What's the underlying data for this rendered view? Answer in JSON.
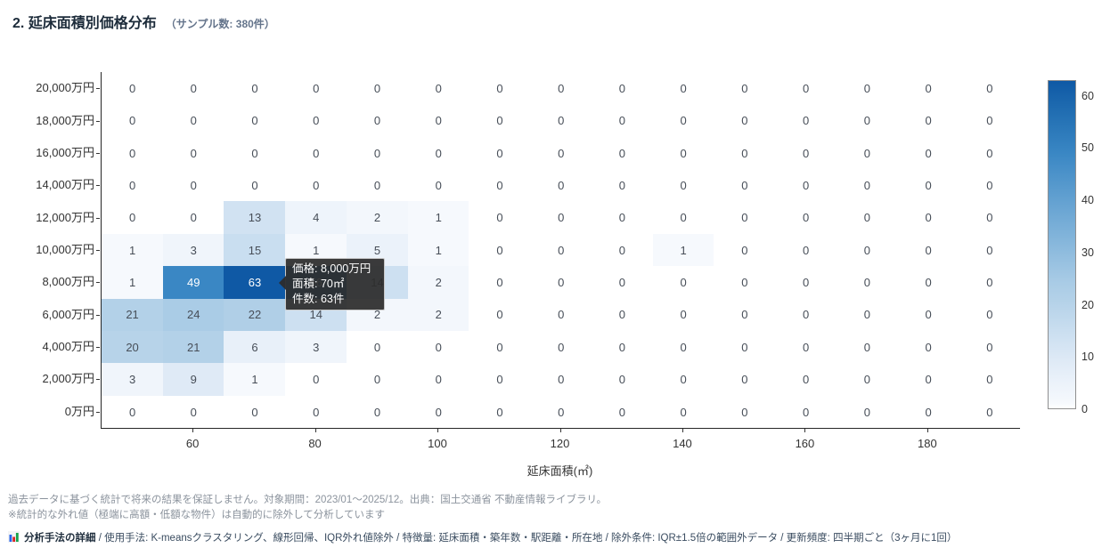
{
  "header": {
    "title": "2. 延床面積別価格分布",
    "sample_note": "（サンプル数: 380件）"
  },
  "chart_data": {
    "type": "heatmap",
    "title": "2. 延床面積別価格分布",
    "sample_count": 380,
    "xlabel": "延床面積(㎡)",
    "x_bins_m2": [
      50,
      60,
      70,
      80,
      90,
      100,
      110,
      120,
      130,
      140,
      150,
      160,
      170,
      180,
      190
    ],
    "x_tick_labels": [
      "60",
      "80",
      "100",
      "120",
      "140",
      "160",
      "180"
    ],
    "x_tick_col_index": [
      1,
      3,
      5,
      7,
      9,
      11,
      13
    ],
    "y_categories": [
      "20,000万円",
      "18,000万円",
      "16,000万円",
      "14,000万円",
      "12,000万円",
      "10,000万円",
      "8,000万円",
      "6,000万円",
      "4,000万円",
      "2,000万円",
      "0万円"
    ],
    "values": [
      [
        0,
        0,
        0,
        0,
        0,
        0,
        0,
        0,
        0,
        0,
        0,
        0,
        0,
        0,
        0
      ],
      [
        0,
        0,
        0,
        0,
        0,
        0,
        0,
        0,
        0,
        0,
        0,
        0,
        0,
        0,
        0
      ],
      [
        0,
        0,
        0,
        0,
        0,
        0,
        0,
        0,
        0,
        0,
        0,
        0,
        0,
        0,
        0
      ],
      [
        0,
        0,
        0,
        0,
        0,
        0,
        0,
        0,
        0,
        0,
        0,
        0,
        0,
        0,
        0
      ],
      [
        0,
        0,
        13,
        4,
        2,
        1,
        0,
        0,
        0,
        0,
        0,
        0,
        0,
        0,
        0
      ],
      [
        1,
        3,
        15,
        1,
        5,
        1,
        0,
        0,
        0,
        1,
        0,
        0,
        0,
        0,
        0
      ],
      [
        1,
        49,
        63,
        56,
        14,
        2,
        0,
        0,
        0,
        0,
        0,
        0,
        0,
        0,
        0
      ],
      [
        21,
        24,
        22,
        14,
        2,
        2,
        0,
        0,
        0,
        0,
        0,
        0,
        0,
        0,
        0
      ],
      [
        20,
        21,
        6,
        3,
        0,
        0,
        0,
        0,
        0,
        0,
        0,
        0,
        0,
        0,
        0
      ],
      [
        3,
        9,
        1,
        0,
        0,
        0,
        0,
        0,
        0,
        0,
        0,
        0,
        0,
        0,
        0
      ],
      [
        0,
        0,
        0,
        0,
        0,
        0,
        0,
        0,
        0,
        0,
        0,
        0,
        0,
        0,
        0
      ]
    ],
    "colorbar": {
      "min": 0,
      "max": 63,
      "ticks": [
        0,
        10,
        20,
        30,
        40,
        50,
        60
      ]
    },
    "colorscale": [
      [
        0,
        "#ffffff"
      ],
      [
        1,
        "#f6f9fd"
      ],
      [
        2,
        "#f3f7fc"
      ],
      [
        5,
        "#ebf2fa"
      ],
      [
        9,
        "#dfeaf6"
      ],
      [
        14,
        "#cde0f1"
      ],
      [
        21,
        "#b3d1e8"
      ],
      [
        24,
        "#aacce6"
      ],
      [
        30,
        "#8fbcde"
      ],
      [
        40,
        "#63a1d1"
      ],
      [
        49,
        "#3a87c4"
      ],
      [
        56,
        "#2471b4"
      ],
      [
        63,
        "#0f59a5"
      ]
    ],
    "legend_position": "right",
    "grid": false
  },
  "tooltip": {
    "price": "価格: 8,000万円",
    "area": "面積: 70㎡",
    "count": "件数: 63件"
  },
  "footer": {
    "line1": "過去データに基づく統計で将来の結果を保証しません。対象期間：2023/01～2025/12。出典：国土交通省 不動産情報ライブラリ。",
    "line2": "※統計的な外れ値（極端に高額・低額な物件）は自動的に除外して分析しています",
    "method_label": "分析手法の詳細",
    "method_rest": " / 使用手法: K-meansクラスタリング、線形回帰、IQR外れ値除外 / 特徴量: 延床面積・築年数・駅距離・所在地 / 除外条件: IQR±1.5倍の範囲外データ / 更新頻度: 四半期ごと（3ヶ月に1回）"
  },
  "icons": {
    "method_icon": "bar-chart-icon",
    "bar_colors": [
      "#2563eb",
      "#dc2626",
      "#16a34a"
    ]
  }
}
